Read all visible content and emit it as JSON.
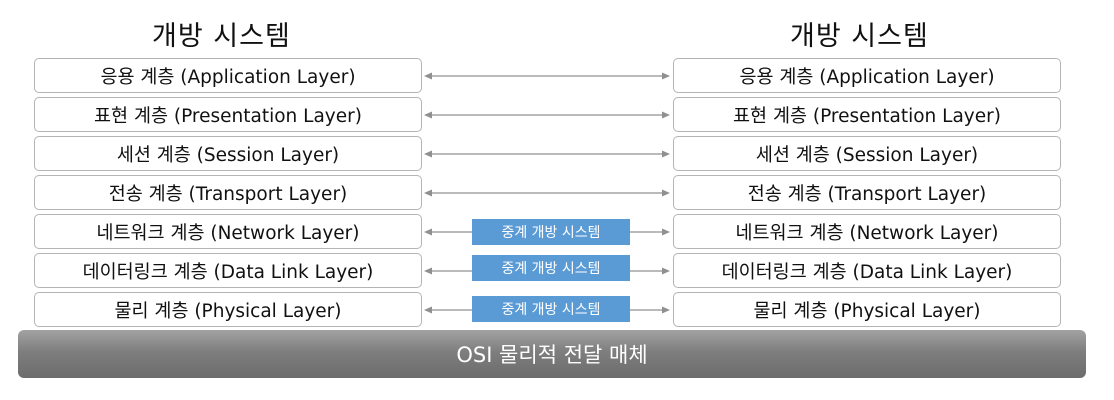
{
  "left_system": {
    "title": "개방 시스템",
    "layers": [
      "응용 계층 (Application Layer)",
      "표현 계층 (Presentation Layer)",
      "세션 계층 (Session Layer)",
      "전송 계층 (Transport Layer)",
      "네트워크 계층 (Network Layer)",
      "데이터링크 계층 (Data Link Layer)",
      "물리 계층 (Physical Layer)"
    ]
  },
  "right_system": {
    "title": "개방 시스템",
    "layers": [
      "응용 계층 (Application Layer)",
      "표현 계층 (Presentation Layer)",
      "세션 계층 (Session Layer)",
      "전송 계층 (Transport Layer)",
      "네트워크 계층 (Network Layer)",
      "데이터링크 계층 (Data Link Layer)",
      "물리 계층 (Physical Layer)"
    ]
  },
  "relay_system": {
    "labels": [
      "중계 개방 시스템",
      "중계 개방 시스템",
      "중계 개방 시스템"
    ]
  },
  "medium": {
    "label": "OSI 물리적 전달 매체"
  },
  "colors": {
    "relay_fill": "#5b9bd5",
    "arrow": "#909090",
    "box_border": "#b4b4b4",
    "medium_fill": "#7e7e7e"
  }
}
